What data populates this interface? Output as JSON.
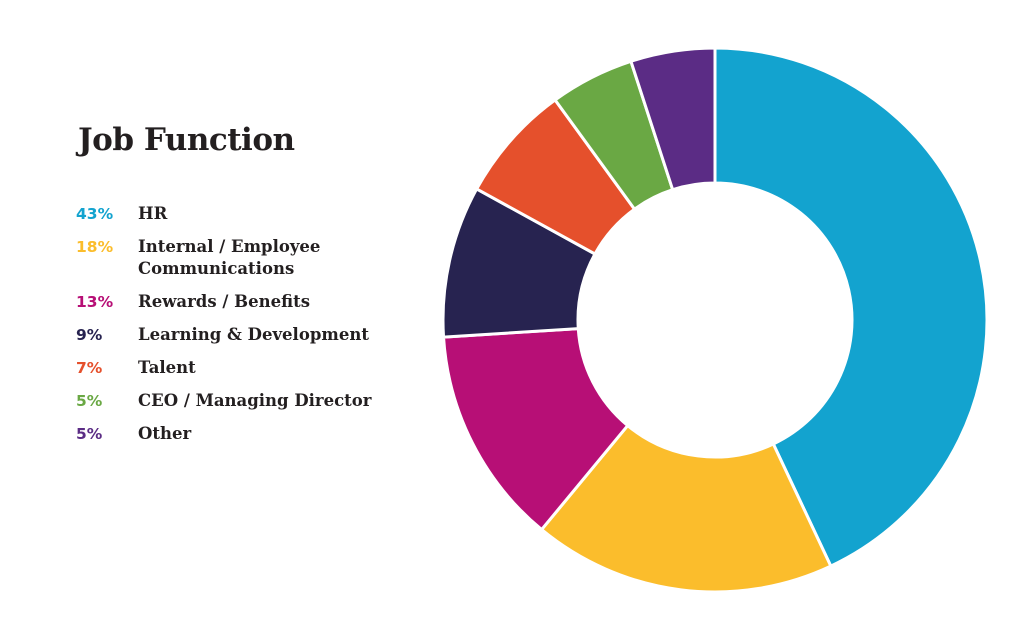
{
  "chart_data": {
    "type": "pie",
    "title": "Job Function",
    "donut": true,
    "legend_position": "left",
    "start": "12 o'clock, clockwise",
    "slices": [
      {
        "label": "HR",
        "value": 43,
        "value_label": "43%",
        "color": "#13a3cf"
      },
      {
        "label": "Internal / Employee Communications",
        "label_lines": [
          "Internal / Employee",
          "Communications"
        ],
        "value": 18,
        "value_label": "18%",
        "color": "#fbbd2c"
      },
      {
        "label": "Rewards / Benefits",
        "value": 13,
        "value_label": "13%",
        "color": "#b70f76"
      },
      {
        "label": "Learning & Development",
        "value": 9,
        "value_label": "9%",
        "color": "#272350"
      },
      {
        "label": "Talent",
        "value": 7,
        "value_label": "7%",
        "color": "#e5502c"
      },
      {
        "label": "CEO / Managing Director",
        "value": 5,
        "value_label": "5%",
        "color": "#6aa844"
      },
      {
        "label": "Other",
        "value": 5,
        "value_label": "5%",
        "color": "#5b2c85"
      }
    ]
  }
}
